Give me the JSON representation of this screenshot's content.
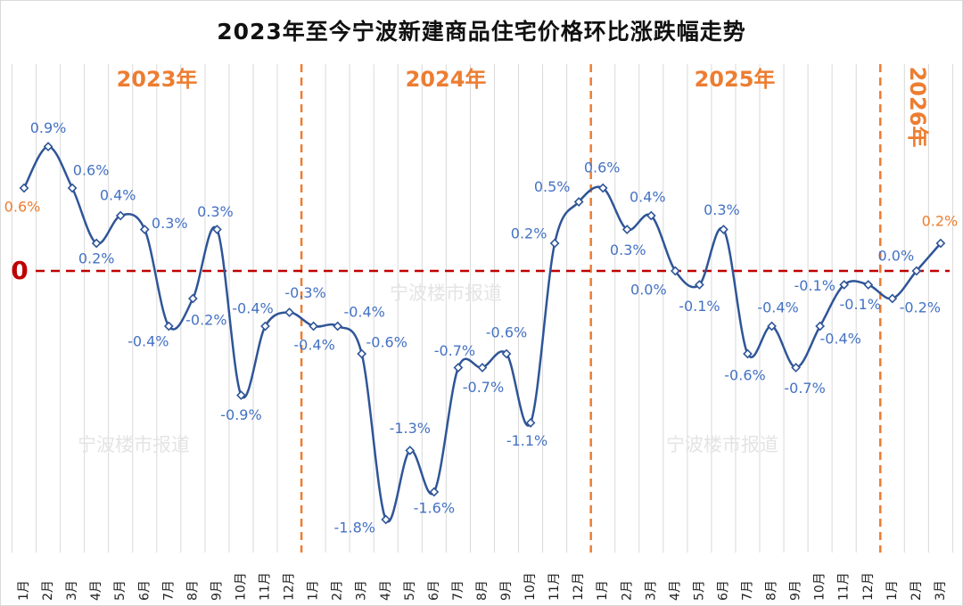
{
  "chart_data": {
    "type": "line",
    "title": "2023年至今宁波新建商品住宅价格环比涨跌幅走势",
    "watermark": "宁波楼市报道",
    "zero_label": "0",
    "years": [
      "2023年",
      "2024年",
      "2025年",
      "2026年"
    ],
    "categories": [
      "1月",
      "2月",
      "3月",
      "4月",
      "5月",
      "6月",
      "7月",
      "8月",
      "9月",
      "10月",
      "11月",
      "12月",
      "1月",
      "2月",
      "3月",
      "4月",
      "5月",
      "6月",
      "7月",
      "8月",
      "9月",
      "10月",
      "11月",
      "12月",
      "1月",
      "2月",
      "3月",
      "4月",
      "5月",
      "6月",
      "7月",
      "8月",
      "9月",
      "10月",
      "11月",
      "12月",
      "1月",
      "2月",
      "3月"
    ],
    "values": [
      0.6,
      0.9,
      0.6,
      0.2,
      0.4,
      0.3,
      -0.4,
      -0.2,
      0.3,
      -0.9,
      -0.4,
      -0.3,
      -0.4,
      -0.4,
      -0.6,
      -1.8,
      -1.3,
      -1.6,
      -0.7,
      -0.7,
      -0.6,
      -1.1,
      0.2,
      0.5,
      0.6,
      0.3,
      0.4,
      0.0,
      -0.1,
      0.3,
      -0.6,
      -0.4,
      -0.7,
      -0.4,
      -0.1,
      -0.1,
      -0.2,
      0.0,
      0.2
    ],
    "data_labels": [
      "0.6%",
      "0.9%",
      "0.6%",
      "0.2%",
      "0.4%",
      "0.3%",
      "-0.4%",
      "-0.2%",
      "0.3%",
      "-0.9%",
      "-0.4%",
      "-0.3%",
      "-0.4%",
      "-0.4%",
      "-0.6%",
      "-1.8%",
      "-1.3%",
      "-1.6%",
      "-0.7%",
      "-0.7%",
      "-0.6%",
      "-1.1%",
      "0.2%",
      "0.5%",
      "0.6%",
      "0.3%",
      "0.4%",
      "0.0%",
      "-0.1%",
      "0.3%",
      "-0.6%",
      "-0.4%",
      "-0.7%",
      "-0.4%",
      "-0.1%",
      "-0.1%",
      "-0.2%",
      "0.0%",
      "0.2%"
    ],
    "highlighted_labels": [
      0,
      38
    ],
    "ylim": [
      -2.0,
      1.5
    ],
    "unit": "%",
    "grid": "vertical",
    "legend": "none",
    "colors": {
      "line": "#2f5597",
      "label": "#4472c4",
      "highlight": "#ed7d31",
      "zero_line": "#c00000",
      "year_divider": "#ed7d31",
      "grid": "#d9d9d9"
    }
  }
}
